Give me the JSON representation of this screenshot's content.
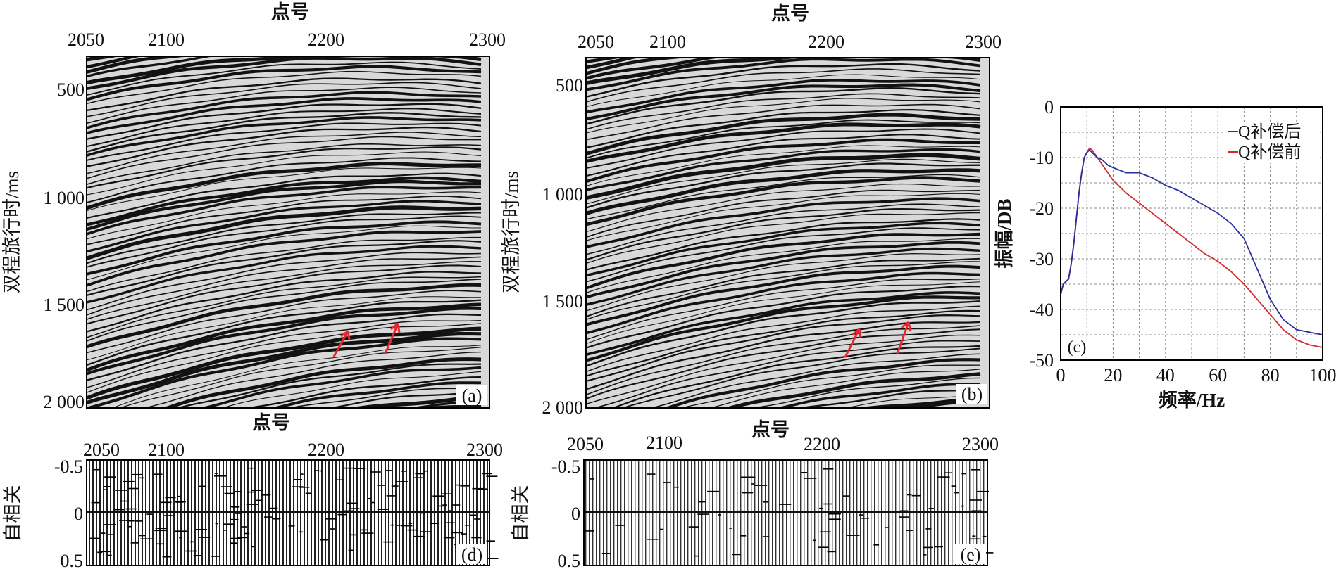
{
  "panels": {
    "a": {
      "label": "(a)",
      "x_title": "点号",
      "y_title": "双程旅行时/ms",
      "x_ticks": [
        "2050",
        "2100",
        "2200",
        "2300"
      ],
      "y_ticks": [
        "500",
        "1 000",
        "1 500",
        "2 000"
      ]
    },
    "b": {
      "label": "(b)",
      "x_title": "点号",
      "y_title": "双程旅行时/ms",
      "x_ticks": [
        "2050",
        "2100",
        "2200",
        "2300"
      ],
      "y_ticks": [
        "500",
        "1 000",
        "1 500",
        "2 000"
      ]
    },
    "d": {
      "label": "(d)",
      "x_title": "点号",
      "y_title": "自相关",
      "x_ticks": [
        "2050",
        "2100",
        "2200",
        "2300"
      ],
      "y_ticks": [
        "-0.5",
        "0",
        "0.5"
      ]
    },
    "e": {
      "label": "(e)",
      "x_title": "点号",
      "y_title": "自相关",
      "x_ticks": [
        "2050",
        "2100",
        "2200",
        "2300"
      ],
      "y_ticks": [
        "-0.5",
        "0",
        "0.5"
      ]
    }
  },
  "colors": {
    "after": "#2b2f9a",
    "before": "#d42a2f",
    "arrow": "#e8262c"
  },
  "chart_data": {
    "type": "line",
    "panel_label": "(c)",
    "xlabel": "频率/Hz",
    "ylabel": "振幅/DB",
    "xlim": [
      0,
      100
    ],
    "ylim": [
      -50,
      0
    ],
    "x_ticks": [
      "0",
      "20",
      "40",
      "60",
      "80",
      "100"
    ],
    "y_ticks": [
      "0",
      "-10",
      "-20",
      "-30",
      "-40",
      "-50"
    ],
    "grid": true,
    "legend_position": "top-right",
    "series": [
      {
        "name": "Q补偿后",
        "color": "#2b2f9a",
        "x": [
          0,
          1,
          2,
          3,
          4,
          5,
          6,
          7,
          8,
          9,
          10,
          11,
          12,
          14,
          16,
          18,
          20,
          25,
          30,
          35,
          40,
          45,
          50,
          55,
          60,
          65,
          70,
          75,
          80,
          85,
          90,
          95,
          100
        ],
        "y": [
          -37,
          -35,
          -34.5,
          -34,
          -31,
          -27,
          -22,
          -17,
          -13,
          -10,
          -9,
          -8.5,
          -9,
          -10,
          -10.5,
          -11.5,
          -12,
          -13,
          -13,
          -14,
          -15.5,
          -16.5,
          -18,
          -19.5,
          -21,
          -23,
          -26,
          -32,
          -38,
          -42,
          -44,
          -44.5,
          -45
        ]
      },
      {
        "name": "Q补偿前",
        "color": "#d42a2f",
        "x": [
          0,
          1,
          2,
          3,
          4,
          5,
          6,
          7,
          8,
          9,
          10,
          11,
          12,
          14,
          16,
          18,
          20,
          25,
          30,
          35,
          40,
          45,
          50,
          55,
          60,
          65,
          70,
          75,
          80,
          85,
          90,
          95,
          100
        ],
        "y": [
          -37,
          -35,
          -34.5,
          -34,
          -31,
          -27,
          -22,
          -17,
          -13,
          -10,
          -9,
          -8.2,
          -8.5,
          -10,
          -11.5,
          -13,
          -14.5,
          -17,
          -19,
          -21,
          -23,
          -25,
          -27,
          -29,
          -30.5,
          -32.5,
          -35,
          -38,
          -41,
          -44,
          -46,
          -47,
          -47.5
        ]
      }
    ]
  }
}
